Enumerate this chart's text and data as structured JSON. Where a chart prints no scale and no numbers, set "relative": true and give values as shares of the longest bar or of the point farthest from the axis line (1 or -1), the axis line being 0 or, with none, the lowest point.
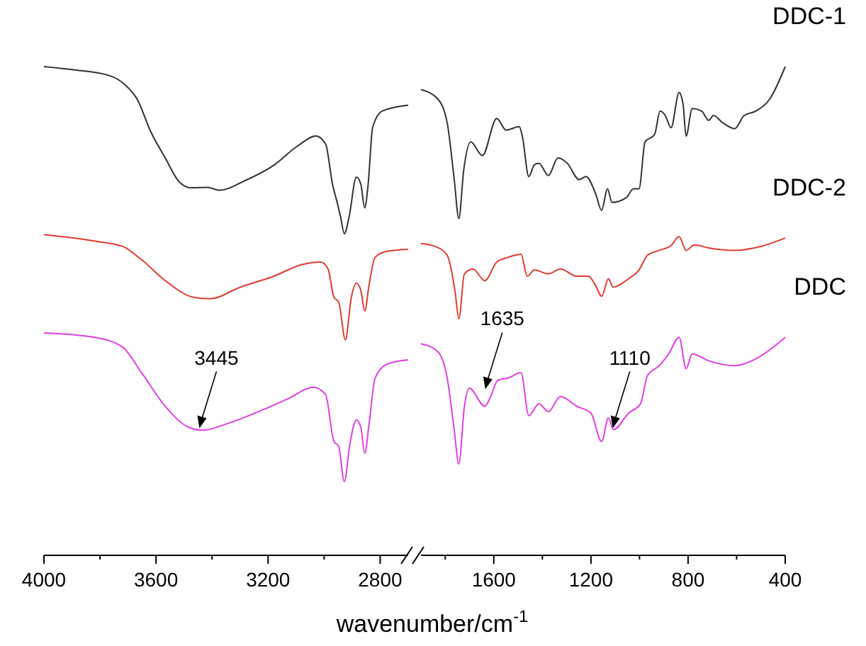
{
  "chart_data": [
    {
      "type": "line",
      "relative": true,
      "xlabel": "wavenumber/cm$^{-1}$",
      "xlim": [
        4000,
        2700
      ],
      "xticks": [
        4000,
        {
          "value": 3800,
          "label": null
        },
        3600,
        {
          "value": 3400,
          "label": null
        },
        3200,
        {
          "value": 3000,
          "label": null
        },
        2800
      ],
      "series": [
        {
          "color": "#333333",
          "x": [
            4000,
            3889,
            3769,
            3711,
            3668,
            3618,
            3567,
            3517,
            3475,
            3416,
            3374,
            3281,
            3180,
            3096,
            3029,
            2995,
            2970,
            2953,
            2941,
            2928,
            2911,
            2885,
            2869,
            2855,
            2843,
            2827,
            2793,
            2700
          ],
          "values": [
            1.0,
            0.993,
            0.982,
            0.963,
            0.934,
            0.866,
            0.813,
            0.764,
            0.752,
            0.753,
            0.747,
            0.767,
            0.798,
            0.837,
            0.858,
            0.842,
            0.759,
            0.721,
            0.692,
            0.658,
            0.692,
            0.774,
            0.759,
            0.711,
            0.759,
            0.875,
            0.909,
            0.921
          ]
        },
        {
          "color": "#e03c31",
          "x": [
            4000,
            3820,
            3719,
            3652,
            3567,
            3466,
            3408,
            3298,
            3180,
            3079,
            3012,
            2986,
            2965,
            2948,
            2924,
            2903,
            2885,
            2869,
            2855,
            2840,
            2818,
            2776,
            2700
          ],
          "values": [
            0.656,
            0.643,
            0.632,
            0.605,
            0.562,
            0.528,
            0.525,
            0.549,
            0.571,
            0.595,
            0.6,
            0.586,
            0.528,
            0.518,
            0.441,
            0.528,
            0.557,
            0.542,
            0.5,
            0.552,
            0.61,
            0.622,
            0.626
          ]
        },
        {
          "color": "#e040e0",
          "x": [
            4000,
            3820,
            3719,
            3652,
            3567,
            3483,
            3433,
            3348,
            3247,
            3130,
            3037,
            2995,
            2965,
            2948,
            2928,
            2908,
            2885,
            2869,
            2855,
            2840,
            2818,
            2776,
            2700
          ],
          "values": [
            0.455,
            0.446,
            0.426,
            0.374,
            0.305,
            0.262,
            0.256,
            0.269,
            0.291,
            0.32,
            0.344,
            0.329,
            0.233,
            0.223,
            0.151,
            0.228,
            0.277,
            0.262,
            0.209,
            0.267,
            0.363,
            0.391,
            0.4
          ]
        }
      ],
      "annotations": [
        {
          "text": "3445",
          "x": 3445,
          "y": 0.26
        }
      ]
    },
    {
      "type": "line",
      "relative": true,
      "xlim": [
        1900,
        400
      ],
      "xticks": [
        {
          "value": 1800,
          "label": null
        },
        1600,
        {
          "value": 1400,
          "label": null
        },
        1200,
        {
          "value": 1000,
          "label": null
        },
        800,
        {
          "value": 600,
          "label": null
        },
        400
      ],
      "series": [
        {
          "name": "DDC-1",
          "color": "#333333",
          "x": [
            1900,
            1831,
            1792,
            1763,
            1744,
            1724,
            1695,
            1647,
            1588,
            1549,
            1495,
            1482,
            1456,
            1433,
            1414,
            1375,
            1336,
            1297,
            1249,
            1220,
            1181,
            1156,
            1132,
            1113,
            1054,
            1025,
            1002,
            977,
            938,
            915,
            894,
            870,
            837,
            821,
            808,
            783,
            744,
            715,
            696,
            657,
            608,
            569,
            521,
            463,
            400
          ],
          "values": [
            0.953,
            0.934,
            0.885,
            0.769,
            0.689,
            0.788,
            0.846,
            0.818,
            0.894,
            0.87,
            0.877,
            0.856,
            0.775,
            0.799,
            0.802,
            0.777,
            0.813,
            0.802,
            0.769,
            0.775,
            0.74,
            0.706,
            0.75,
            0.722,
            0.732,
            0.75,
            0.75,
            0.846,
            0.861,
            0.909,
            0.9,
            0.875,
            0.947,
            0.924,
            0.858,
            0.914,
            0.909,
            0.89,
            0.9,
            0.885,
            0.873,
            0.9,
            0.909,
            0.934,
            1.0
          ]
        },
        {
          "name": "DDC-2",
          "color": "#e03c31",
          "x": [
            1900,
            1841,
            1792,
            1759,
            1744,
            1721,
            1686,
            1637,
            1588,
            1540,
            1488,
            1462,
            1433,
            1375,
            1326,
            1258,
            1210,
            1181,
            1156,
            1128,
            1109,
            1045,
            1002,
            967,
            919,
            870,
            837,
            808,
            773,
            715,
            608,
            501,
            400
          ],
          "values": [
            0.638,
            0.632,
            0.614,
            0.538,
            0.484,
            0.576,
            0.586,
            0.562,
            0.6,
            0.61,
            0.616,
            0.571,
            0.584,
            0.576,
            0.586,
            0.571,
            0.571,
            0.552,
            0.53,
            0.566,
            0.549,
            0.566,
            0.584,
            0.614,
            0.624,
            0.634,
            0.652,
            0.624,
            0.635,
            0.629,
            0.624,
            0.632,
            0.649
          ]
        },
        {
          "name": "DDC",
          "color": "#e040e0",
          "x": [
            1900,
            1831,
            1792,
            1763,
            1744,
            1721,
            1701,
            1637,
            1613,
            1584,
            1540,
            1488,
            1456,
            1414,
            1375,
            1326,
            1258,
            1200,
            1156,
            1128,
            1107,
            1045,
            996,
            967,
            919,
            880,
            837,
            808,
            783,
            715,
            608,
            521,
            400
          ],
          "values": [
            0.433,
            0.417,
            0.363,
            0.257,
            0.187,
            0.305,
            0.342,
            0.305,
            0.325,
            0.358,
            0.363,
            0.374,
            0.286,
            0.31,
            0.294,
            0.325,
            0.305,
            0.291,
            0.233,
            0.281,
            0.257,
            0.291,
            0.31,
            0.368,
            0.388,
            0.412,
            0.446,
            0.382,
            0.412,
            0.398,
            0.388,
            0.402,
            0.446
          ]
        }
      ],
      "annotations": [
        {
          "text": "1635",
          "x": 1635,
          "y": 0.34
        },
        {
          "text": "1110",
          "x": 1110,
          "y": 0.26
        }
      ]
    }
  ]
}
